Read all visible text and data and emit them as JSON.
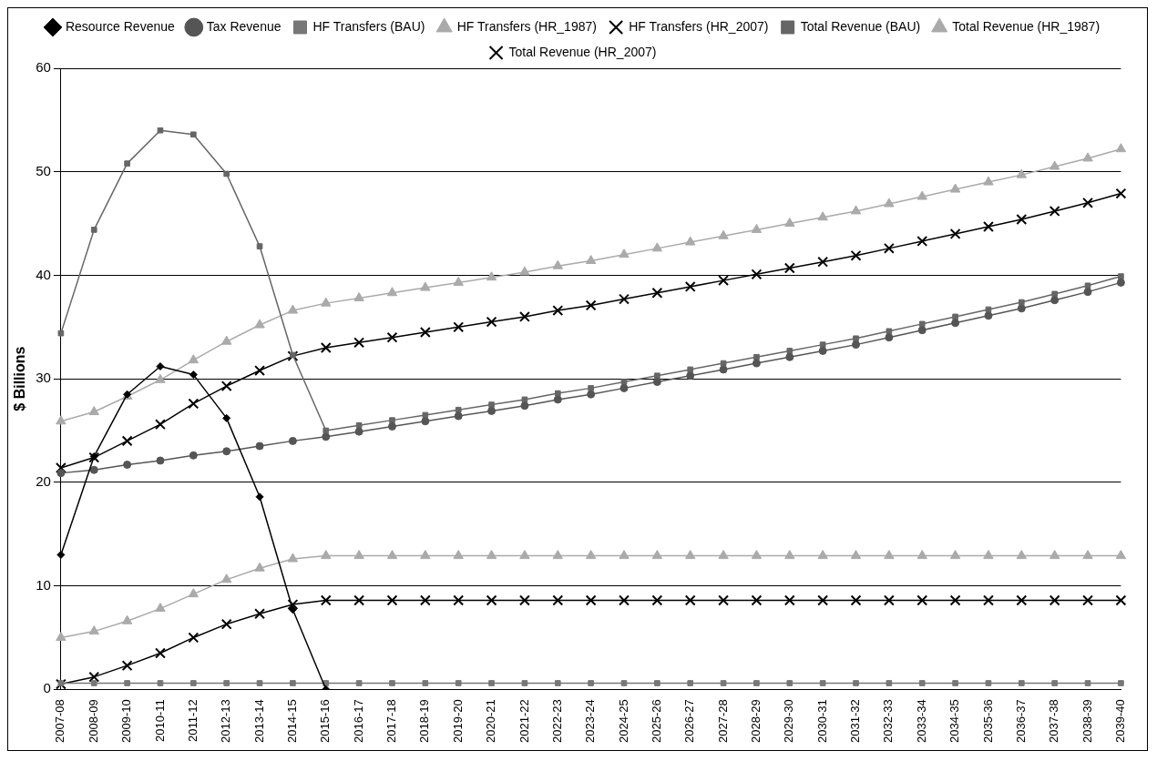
{
  "chart_data": {
    "type": "line",
    "ylabel": "$ Billions",
    "categories": [
      "2007-08",
      "2008-09",
      "2009-10",
      "2010-11",
      "2011-12",
      "2012-13",
      "2013-14",
      "2014-15",
      "2015-16",
      "2016-17",
      "2017-18",
      "2018-19",
      "2019-20",
      "2020-21",
      "2021-22",
      "2022-23",
      "2023-24",
      "2024-25",
      "2025-26",
      "2026-27",
      "2027-28",
      "2028-29",
      "2029-30",
      "2030-31",
      "2031-32",
      "2032-33",
      "2033-34",
      "2034-35",
      "2035-36",
      "2036-37",
      "2037-38",
      "2038-39",
      "2039-40"
    ],
    "ylim": [
      0,
      60
    ],
    "yticks": [
      0,
      10,
      20,
      30,
      40,
      50,
      60
    ],
    "grid": "y",
    "legend": "top",
    "line_style": "solid",
    "series": [
      {
        "name": "Resource Revenue",
        "color": "#000000",
        "marker": "diamond",
        "values": [
          13.0,
          22.5,
          28.5,
          31.2,
          30.4,
          26.2,
          18.6,
          7.7,
          0,
          null,
          null,
          null,
          null,
          null,
          null,
          null,
          null,
          null,
          null,
          null,
          null,
          null,
          null,
          null,
          null,
          null,
          null,
          null,
          null,
          null,
          null,
          null,
          null
        ]
      },
      {
        "name": "Tax Revenue",
        "color": "#555555",
        "marker": "circle",
        "values": [
          20.9,
          21.2,
          21.7,
          22.1,
          22.6,
          23.0,
          23.5,
          24.0,
          24.4,
          24.9,
          25.4,
          25.9,
          26.4,
          26.9,
          27.4,
          28.0,
          28.5,
          29.1,
          29.7,
          30.3,
          30.9,
          31.5,
          32.1,
          32.7,
          33.3,
          34.0,
          34.7,
          35.4,
          36.1,
          36.8,
          37.6,
          38.4,
          39.3
        ]
      },
      {
        "name": "HF Transfers (BAU)",
        "color": "#777777",
        "marker": "square",
        "values": [
          0.6,
          0.6,
          0.6,
          0.6,
          0.6,
          0.6,
          0.6,
          0.6,
          0.6,
          0.6,
          0.6,
          0.6,
          0.6,
          0.6,
          0.6,
          0.6,
          0.6,
          0.6,
          0.6,
          0.6,
          0.6,
          0.6,
          0.6,
          0.6,
          0.6,
          0.6,
          0.6,
          0.6,
          0.6,
          0.6,
          0.6,
          0.6,
          0.6
        ]
      },
      {
        "name": "HF Transfers (HR_1987)",
        "color": "#aaaaaa",
        "marker": "triangle",
        "values": [
          5.0,
          5.6,
          6.6,
          7.8,
          9.2,
          10.6,
          11.7,
          12.6,
          12.9,
          12.9,
          12.9,
          12.9,
          12.9,
          12.9,
          12.9,
          12.9,
          12.9,
          12.9,
          12.9,
          12.9,
          12.9,
          12.9,
          12.9,
          12.9,
          12.9,
          12.9,
          12.9,
          12.9,
          12.9,
          12.9,
          12.9,
          12.9,
          12.9
        ]
      },
      {
        "name": "HF Transfers (HR_2007)",
        "color": "#000000",
        "marker": "cross",
        "values": [
          0.5,
          1.2,
          2.3,
          3.5,
          5.0,
          6.3,
          7.3,
          8.2,
          8.6,
          8.6,
          8.6,
          8.6,
          8.6,
          8.6,
          8.6,
          8.6,
          8.6,
          8.6,
          8.6,
          8.6,
          8.6,
          8.6,
          8.6,
          8.6,
          8.6,
          8.6,
          8.6,
          8.6,
          8.6,
          8.6,
          8.6,
          8.6,
          8.6
        ]
      },
      {
        "name": "Total Revenue (BAU)",
        "color": "#666666",
        "marker": "square",
        "values": [
          34.4,
          44.4,
          50.8,
          54.0,
          53.6,
          49.8,
          42.8,
          32.3,
          25.0,
          25.5,
          26.0,
          26.5,
          27.0,
          27.5,
          28.0,
          28.6,
          29.1,
          29.7,
          30.3,
          30.9,
          31.5,
          32.1,
          32.7,
          33.3,
          33.9,
          34.6,
          35.3,
          36.0,
          36.7,
          37.4,
          38.2,
          39.0,
          39.9
        ]
      },
      {
        "name": "Total Revenue (HR_1987)",
        "color": "#aaaaaa",
        "marker": "triangle",
        "values": [
          25.9,
          26.8,
          28.3,
          29.9,
          31.8,
          33.6,
          35.2,
          36.6,
          37.3,
          37.8,
          38.3,
          38.8,
          39.3,
          39.8,
          40.3,
          40.9,
          41.4,
          42.0,
          42.6,
          43.2,
          43.8,
          44.4,
          45.0,
          45.6,
          46.2,
          46.9,
          47.6,
          48.3,
          49.0,
          49.7,
          50.5,
          51.3,
          52.2
        ]
      },
      {
        "name": "Total Revenue (HR_2007)",
        "color": "#000000",
        "marker": "cross",
        "values": [
          21.4,
          22.4,
          24.0,
          25.6,
          27.6,
          29.3,
          30.8,
          32.2,
          33.0,
          33.5,
          34.0,
          34.5,
          35.0,
          35.5,
          36.0,
          36.6,
          37.1,
          37.7,
          38.3,
          38.9,
          39.5,
          40.1,
          40.7,
          41.3,
          41.9,
          42.6,
          43.3,
          44.0,
          44.7,
          45.4,
          46.2,
          47.0,
          47.9
        ]
      }
    ]
  }
}
